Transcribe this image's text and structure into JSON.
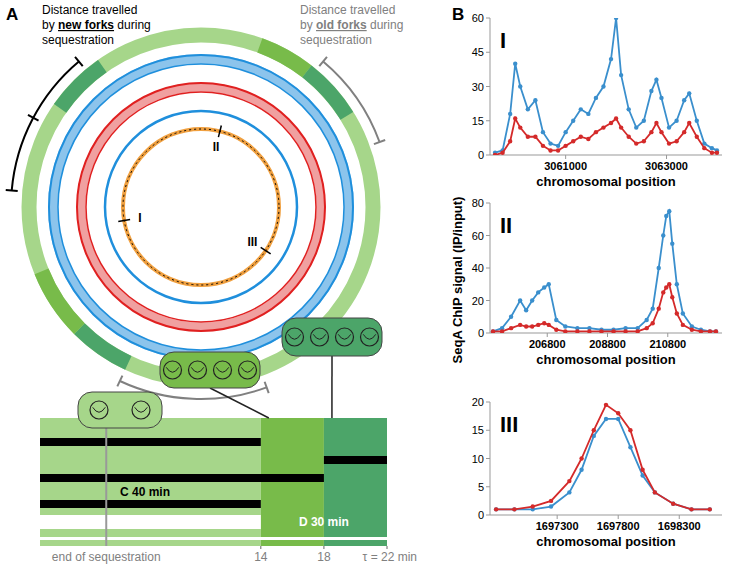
{
  "panel_a": {
    "label": "A",
    "annotations": [
      {
        "color": "#000000",
        "lines": [
          [
            {
              "text": "Distance travelled"
            }
          ],
          [
            {
              "text": "by "
            },
            {
              "text": "new forks",
              "emphasis": true
            },
            {
              "text": " during"
            }
          ],
          [
            {
              "text": "sequestration"
            }
          ]
        ]
      },
      {
        "color": "#808080",
        "lines": [
          [
            {
              "text": "Distance travelled"
            }
          ],
          [
            {
              "text": "by "
            },
            {
              "text": "old forks",
              "emphasis": true
            },
            {
              "text": " during"
            }
          ],
          [
            {
              "text": "sequestration"
            }
          ]
        ]
      }
    ],
    "sites": [
      "I",
      "II",
      "III"
    ],
    "timeline": {
      "xlim": [
        0,
        22
      ],
      "ticks": [
        14,
        18,
        {
          "value": 22,
          "label": "τ = 22 min"
        }
      ],
      "phases": [
        "C 40 min",
        "D 30 min"
      ],
      "marker": {
        "value": 4.2,
        "label": "end of sequestration"
      }
    }
  },
  "panel_b": {
    "label": "B",
    "y_label": "SeqA ChIP signal (IP/input)"
  },
  "chart_data": [
    {
      "type": "line",
      "title": "I",
      "x_label": "chromosomal position",
      "marker": "circle",
      "x": [
        3059600,
        3059750,
        3059900,
        3060000,
        3060100,
        3060250,
        3060400,
        3060550,
        3060700,
        3060850,
        3061000,
        3061150,
        3061300,
        3061450,
        3061600,
        3061750,
        3061900,
        3062000,
        3062100,
        3062250,
        3062400,
        3062550,
        3062700,
        3062800,
        3062900,
        3063050,
        3063200,
        3063350,
        3063450,
        3063600,
        3063750,
        3063900,
        3064000
      ],
      "series": [
        {
          "color": "#3a8fcd",
          "values": [
            1,
            2,
            18,
            40,
            30,
            20,
            24,
            10,
            5,
            4,
            10,
            15,
            20,
            18,
            25,
            30,
            42,
            60,
            35,
            20,
            12,
            15,
            28,
            33,
            25,
            12,
            15,
            24,
            27,
            15,
            5,
            3,
            2
          ]
        },
        {
          "color": "#d42a2a",
          "values": [
            0,
            1,
            6,
            16,
            12,
            8,
            8,
            4,
            2,
            2,
            4,
            6,
            8,
            7,
            10,
            12,
            14,
            16,
            12,
            8,
            5,
            6,
            10,
            14,
            10,
            5,
            6,
            10,
            14,
            8,
            3,
            1,
            1
          ]
        }
      ],
      "xlim": [
        3059500,
        3064100
      ],
      "xticks": [
        3061000,
        3063000
      ],
      "ylim": [
        0,
        60
      ],
      "yticks": [
        0,
        15,
        30,
        45,
        60
      ]
    },
    {
      "type": "line",
      "title": "II",
      "x_label": "chromosomal position",
      "marker": "circle",
      "x": [
        205000,
        205300,
        205600,
        205900,
        206100,
        206300,
        206500,
        206700,
        206850,
        207100,
        207400,
        207800,
        208200,
        208600,
        209000,
        209400,
        209800,
        210100,
        210300,
        210500,
        210650,
        210750,
        210850,
        210950,
        211100,
        211300,
        211600,
        211900,
        212200,
        212400
      ],
      "series": [
        {
          "color": "#3a8fcd",
          "values": [
            1,
            3,
            10,
            20,
            14,
            20,
            25,
            28,
            30,
            8,
            4,
            3,
            3,
            2,
            2,
            3,
            3,
            8,
            15,
            40,
            60,
            72,
            75,
            55,
            30,
            12,
            4,
            2,
            1,
            1
          ]
        },
        {
          "color": "#d42a2a",
          "values": [
            1,
            1,
            3,
            5,
            4,
            4,
            5,
            6,
            5,
            2,
            1,
            1,
            1,
            1,
            1,
            1,
            1,
            3,
            6,
            15,
            25,
            28,
            30,
            22,
            12,
            5,
            2,
            1,
            1,
            1
          ]
        }
      ],
      "xlim": [
        204900,
        212600
      ],
      "xticks": [
        206800,
        208800,
        210800
      ],
      "ylim": [
        0,
        80
      ],
      "yticks": [
        0,
        20,
        40,
        60,
        80
      ]
    },
    {
      "type": "line",
      "title": "III",
      "x_label": "chromosomal position",
      "marker": "circle",
      "x": [
        1696800,
        1696950,
        1697100,
        1697250,
        1697400,
        1697500,
        1697600,
        1697700,
        1697800,
        1697900,
        1698000,
        1698100,
        1698250,
        1698400,
        1698550
      ],
      "series": [
        {
          "color": "#3a8fcd",
          "values": [
            1,
            1,
            1,
            1.5,
            4,
            8,
            14,
            17,
            17,
            12,
            7,
            4,
            2,
            1,
            1
          ]
        },
        {
          "color": "#d42a2a",
          "values": [
            1,
            1,
            1.5,
            2.5,
            6,
            10,
            15,
            19.5,
            18,
            15,
            8,
            4,
            2,
            1,
            1
          ]
        }
      ],
      "xlim": [
        1696750,
        1698650
      ],
      "xticks": [
        1697300,
        1697800,
        1698300
      ],
      "ylim": [
        0,
        20
      ],
      "yticks": [
        0,
        5,
        10,
        15,
        20
      ]
    }
  ]
}
